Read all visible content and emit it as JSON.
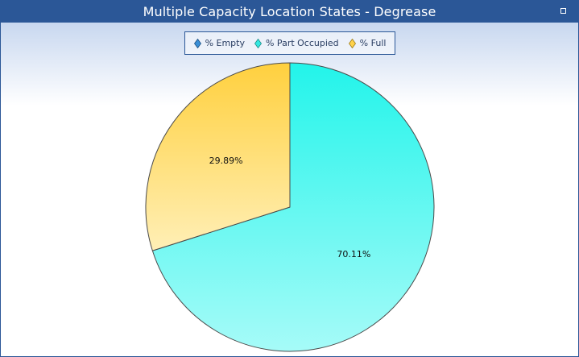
{
  "window": {
    "title": "Multiple Capacity Location States - Degrease"
  },
  "icons": {
    "maximize": "maximize-icon",
    "close": "close-icon"
  },
  "colors": {
    "titlebar": "#2b5797",
    "empty": "#3a8fd6",
    "part_occupied": "#2ef5ec",
    "full": "#ffd24a"
  },
  "legend": {
    "items": [
      {
        "label": "% Empty",
        "color": "#3a8fd6"
      },
      {
        "label": "% Part Occupied",
        "color": "#33e8e0"
      },
      {
        "label": "% Full",
        "color": "#ffd24a"
      }
    ],
    "placement": "top"
  },
  "chart_data": {
    "type": "pie",
    "title": "Multiple Capacity Location States - Degrease",
    "categories": [
      "% Empty",
      "% Part Occupied",
      "% Full"
    ],
    "values": [
      0,
      70.11,
      29.89
    ],
    "labels": [
      "",
      "70.11%",
      "29.89%"
    ],
    "start_angle_deg": 0,
    "direction": "clockwise"
  }
}
